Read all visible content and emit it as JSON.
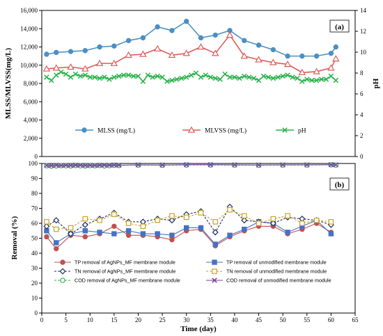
{
  "chart_data": [
    {
      "type": "line",
      "panel_label": "(a)",
      "xlim": [
        0,
        65
      ],
      "ylabel": "MLSS/MLVSS(mg/L)",
      "ylim": [
        0,
        16000
      ],
      "yticks": [
        "0",
        "2,000",
        "4,000",
        "6,000",
        "8,000",
        "10,000",
        "12,000",
        "14,000",
        "16,000"
      ],
      "y2label": "pH",
      "y2lim": [
        0,
        14
      ],
      "y2ticks": [
        "0",
        "2",
        "4",
        "6",
        "8",
        "10",
        "12",
        "14"
      ],
      "legend_position": "bottom",
      "series": [
        {
          "name": "MLSS (mg/L)",
          "axis": "left",
          "color": "#4a90c4",
          "marker": "circle",
          "x": [
            1,
            3,
            6,
            9,
            12,
            15,
            18,
            21,
            24,
            27,
            30,
            33,
            36,
            39,
            42,
            45,
            48,
            51,
            54,
            57,
            60,
            61
          ],
          "values": [
            11200,
            11400,
            11500,
            11600,
            12000,
            12100,
            12700,
            13000,
            14200,
            13800,
            14800,
            13000,
            13300,
            13800,
            12700,
            12200,
            11700,
            11000,
            11000,
            11000,
            11300,
            12000
          ]
        },
        {
          "name": "MLVSS (mg/L)",
          "axis": "left",
          "color": "#e05a5a",
          "marker": "triangle",
          "x": [
            1,
            3,
            6,
            9,
            12,
            15,
            18,
            21,
            24,
            27,
            30,
            33,
            36,
            39,
            42,
            45,
            48,
            51,
            54,
            57,
            60,
            61
          ],
          "values": [
            9600,
            9700,
            9800,
            9600,
            10200,
            10200,
            11100,
            11200,
            11800,
            11100,
            11300,
            12000,
            11300,
            13300,
            11000,
            10600,
            10300,
            10100,
            9200,
            9300,
            9700,
            10700
          ]
        },
        {
          "name": "pH",
          "axis": "right",
          "color": "#2bb24c",
          "marker": "x",
          "x": [
            1,
            2,
            3,
            4,
            5,
            6,
            7,
            8,
            9,
            10,
            11,
            12,
            13,
            14,
            15,
            16,
            17,
            18,
            19,
            20,
            21,
            22,
            23,
            24,
            25,
            26,
            27,
            28,
            29,
            30,
            31,
            32,
            33,
            34,
            35,
            36,
            37,
            38,
            39,
            40,
            41,
            42,
            43,
            44,
            45,
            46,
            47,
            48,
            49,
            50,
            51,
            52,
            53,
            54,
            55,
            56,
            57,
            58,
            59,
            60,
            61
          ],
          "values": [
            7.6,
            7.3,
            7.8,
            8.1,
            7.9,
            7.6,
            7.9,
            7.7,
            7.8,
            7.6,
            7.6,
            7.5,
            7.6,
            7.4,
            7.6,
            7.7,
            7.8,
            7.8,
            7.7,
            7.7,
            7.2,
            7.8,
            7.6,
            7.7,
            7.6,
            7.2,
            7.3,
            7.4,
            7.5,
            7.6,
            7.8,
            8.0,
            7.6,
            7.8,
            7.6,
            7.5,
            7.4,
            7.9,
            7.6,
            7.6,
            7.5,
            7.7,
            7.6,
            7.5,
            7.3,
            7.7,
            7.6,
            7.5,
            7.6,
            7.7,
            7.8,
            7.6,
            7.5,
            7.2,
            7.4,
            7.3,
            7.3,
            7.4,
            7.4,
            7.7,
            7.3
          ]
        }
      ]
    },
    {
      "type": "line",
      "panel_label": "(b)",
      "xlabel": "Time (day)",
      "xlim": [
        0,
        65
      ],
      "xticks": [
        "0",
        "5",
        "10",
        "15",
        "20",
        "25",
        "30",
        "35",
        "40",
        "45",
        "50",
        "55",
        "60",
        "65"
      ],
      "ylabel": "Removal (%)",
      "ylim": [
        0,
        100
      ],
      "yticks": [
        "0",
        "10",
        "20",
        "30",
        "40",
        "50",
        "60",
        "70",
        "80",
        "90",
        "100"
      ],
      "grid": false,
      "legend_position": "bottom",
      "series": [
        {
          "name": "TP removal of AgNPs_MF membrane module",
          "color": "#c0504d",
          "marker": "circle",
          "dash": "solid",
          "x": [
            1,
            3,
            6,
            9,
            12,
            15,
            18,
            21,
            24,
            27,
            30,
            33,
            36,
            39,
            42,
            45,
            48,
            51,
            54,
            57,
            60
          ],
          "values": [
            51,
            43,
            52,
            51,
            53,
            58,
            52,
            52,
            51,
            49,
            55,
            56,
            45,
            51,
            55,
            58,
            58,
            53,
            56,
            60,
            54
          ]
        },
        {
          "name": "TP removal of unmodified membrane module",
          "color": "#4472c4",
          "marker": "square",
          "dash": "solid",
          "x": [
            1,
            3,
            6,
            9,
            12,
            15,
            18,
            21,
            24,
            27,
            30,
            33,
            36,
            39,
            42,
            45,
            48,
            51,
            54,
            57,
            60
          ],
          "values": [
            55,
            47,
            53,
            55,
            54,
            53,
            55,
            53,
            53,
            52,
            57,
            57,
            46,
            52,
            56,
            61,
            60,
            54,
            58,
            62,
            53
          ]
        },
        {
          "name": "TN removal of AgNPs_MF membrane module",
          "color": "#1f2d5a",
          "marker": "diamond",
          "dash": "dash",
          "x": [
            1,
            3,
            6,
            9,
            12,
            15,
            18,
            21,
            24,
            27,
            30,
            33,
            36,
            39,
            42,
            45,
            48,
            51,
            54,
            57,
            60
          ],
          "values": [
            58,
            62,
            53,
            59,
            63,
            67,
            61,
            61,
            63,
            62,
            66,
            68,
            54,
            71,
            62,
            61,
            60,
            64,
            63,
            62,
            59
          ]
        },
        {
          "name": "TN removal of unmodified membrane module",
          "color": "#c9a227",
          "marker": "square-open",
          "dash": "dash",
          "x": [
            1,
            3,
            6,
            9,
            12,
            15,
            18,
            21,
            24,
            27,
            30,
            33,
            36,
            39,
            42,
            45,
            48,
            51,
            54,
            57,
            60
          ],
          "values": [
            61,
            56,
            57,
            63,
            62,
            66,
            60,
            58,
            62,
            65,
            64,
            67,
            61,
            69,
            65,
            60,
            63,
            65,
            60,
            62,
            61
          ]
        },
        {
          "name": "COD removal of AgNPs_MF membrane module",
          "color": "#2bb24c",
          "marker": "circle-open",
          "dash": "dash",
          "x": [
            1,
            2,
            3,
            4,
            5,
            6,
            7,
            8,
            9,
            10,
            11,
            12,
            13,
            14,
            15,
            16,
            20,
            25,
            30,
            35,
            40,
            45,
            50,
            55,
            60,
            61
          ],
          "values": [
            98.5,
            98.3,
            98.4,
            98.6,
            98.5,
            98.4,
            98.7,
            98.5,
            98.4,
            98.6,
            98.5,
            98.7,
            98.4,
            98.6,
            98.8,
            98.7,
            98.9,
            98.8,
            99.0,
            99.0,
            98.9,
            98.8,
            98.9,
            98.9,
            99.1,
            98.9
          ]
        },
        {
          "name": "COD removal of unmodified membrane module",
          "color": "#7b3fa0",
          "marker": "x",
          "dash": "solid",
          "x": [
            1,
            2,
            3,
            4,
            5,
            6,
            7,
            8,
            9,
            10,
            11,
            12,
            13,
            14,
            15,
            16,
            20,
            25,
            30,
            35,
            40,
            45,
            50,
            55,
            60,
            61
          ],
          "values": [
            98.7,
            98.6,
            98.8,
            98.7,
            98.8,
            98.7,
            98.9,
            98.8,
            98.7,
            98.8,
            98.7,
            98.9,
            98.8,
            98.9,
            99.0,
            98.9,
            99.1,
            99.0,
            99.2,
            99.2,
            99.1,
            99.0,
            99.1,
            99.1,
            99.2,
            99.1
          ]
        }
      ]
    }
  ]
}
